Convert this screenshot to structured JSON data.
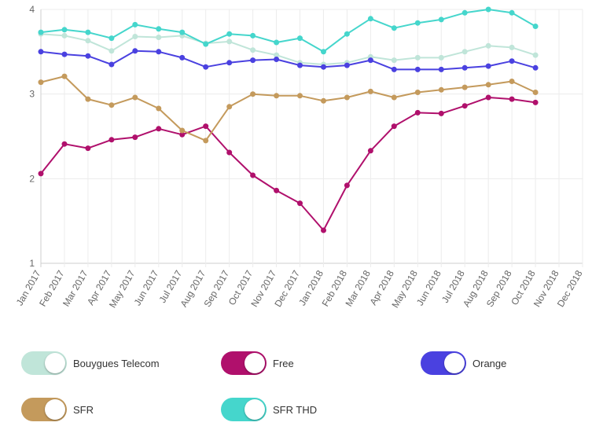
{
  "chart_data": {
    "type": "line",
    "title": "",
    "xlabel": "",
    "ylabel": "",
    "ylim": [
      1,
      4
    ],
    "yticks": [
      1,
      2,
      3,
      4
    ],
    "grid": true,
    "legend_position": "bottom",
    "categories": [
      "Jan 2017",
      "Feb 2017",
      "Mar 2017",
      "Apr 2017",
      "May 2017",
      "Jun 2017",
      "Jul 2017",
      "Aug 2017",
      "Sep 2017",
      "Oct 2017",
      "Nov 2017",
      "Dec 2017",
      "Jan 2018",
      "Feb 2018",
      "Mar 2018",
      "Apr 2018",
      "May 2018",
      "Jun 2018",
      "Jul 2018",
      "Aug 2018",
      "Sep 2018",
      "Oct 2018",
      "Nov 2018",
      "Dec 2018"
    ],
    "series": [
      {
        "name": "Bouygues Telecom",
        "color": "#c0e5d9",
        "values": [
          3.71,
          3.69,
          3.63,
          3.51,
          3.68,
          3.67,
          3.69,
          3.6,
          3.62,
          3.52,
          3.46,
          3.37,
          3.35,
          3.37,
          3.44,
          3.4,
          3.43,
          3.43,
          3.5,
          3.57,
          3.55,
          3.46,
          null,
          null
        ]
      },
      {
        "name": "Free",
        "color": "#b0106c",
        "values": [
          2.06,
          2.41,
          2.36,
          2.46,
          2.49,
          2.59,
          2.52,
          2.62,
          2.31,
          2.04,
          1.86,
          1.71,
          1.39,
          1.92,
          2.33,
          2.62,
          2.78,
          2.77,
          2.86,
          2.96,
          2.94,
          2.9,
          null,
          null
        ]
      },
      {
        "name": "Orange",
        "color": "#4a41e0",
        "values": [
          3.5,
          3.47,
          3.45,
          3.35,
          3.51,
          3.5,
          3.43,
          3.32,
          3.37,
          3.4,
          3.41,
          3.34,
          3.32,
          3.34,
          3.4,
          3.29,
          3.29,
          3.29,
          3.31,
          3.33,
          3.39,
          3.31,
          null,
          null
        ]
      },
      {
        "name": "SFR",
        "color": "#c49a5c",
        "values": [
          3.14,
          3.21,
          2.94,
          2.87,
          2.96,
          2.83,
          2.57,
          2.45,
          2.85,
          3.0,
          2.98,
          2.98,
          2.92,
          2.96,
          3.03,
          2.96,
          3.02,
          3.05,
          3.08,
          3.11,
          3.15,
          3.02,
          null,
          null
        ]
      },
      {
        "name": "SFR THD",
        "color": "#45d6cc",
        "values": [
          3.73,
          3.76,
          3.73,
          3.66,
          3.82,
          3.77,
          3.73,
          3.59,
          3.71,
          3.69,
          3.61,
          3.66,
          3.5,
          3.71,
          3.89,
          3.78,
          3.84,
          3.88,
          3.96,
          4.0,
          3.96,
          3.8,
          null,
          null
        ]
      }
    ]
  }
}
